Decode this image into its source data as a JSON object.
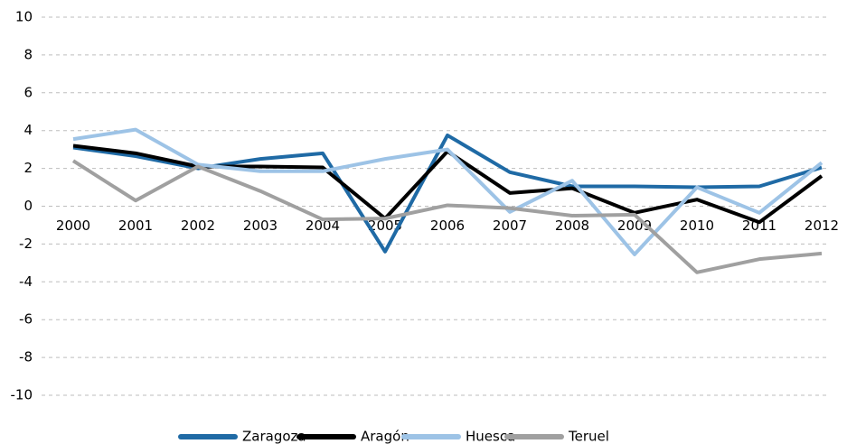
{
  "chart_data": {
    "type": "line",
    "categories": [
      "2000",
      "2001",
      "2002",
      "2003",
      "2004",
      "2005",
      "2006",
      "2007",
      "2008",
      "2009",
      "2010",
      "2011",
      "2012"
    ],
    "series": [
      {
        "name": "Zaragoza",
        "color": "#1f6aa5",
        "values": [
          3.1,
          2.65,
          2.0,
          2.5,
          2.8,
          -2.4,
          3.75,
          1.8,
          1.05,
          1.05,
          1.0,
          1.05,
          2.05
        ]
      },
      {
        "name": "Aragón",
        "color": "#000000",
        "values": [
          3.2,
          2.8,
          2.1,
          2.1,
          2.05,
          -0.65,
          2.9,
          0.7,
          0.95,
          -0.35,
          0.35,
          -0.85,
          1.6
        ]
      },
      {
        "name": "Huesca",
        "color": "#9dc3e6",
        "values": [
          3.55,
          4.05,
          2.2,
          1.85,
          1.85,
          2.5,
          3.0,
          -0.3,
          1.35,
          -2.55,
          1.0,
          -0.35,
          2.3
        ]
      },
      {
        "name": "Teruel",
        "color": "#a0a0a0",
        "values": [
          2.4,
          0.3,
          2.1,
          0.8,
          -0.7,
          -0.65,
          0.05,
          -0.1,
          -0.5,
          -0.45,
          -3.5,
          -2.8,
          -2.5
        ]
      }
    ],
    "ylim": [
      -10,
      10
    ],
    "yticks": [
      -10,
      -8,
      -6,
      -4,
      -2,
      0,
      2,
      4,
      6,
      8,
      10
    ],
    "grid": true,
    "legend": "bottom"
  }
}
